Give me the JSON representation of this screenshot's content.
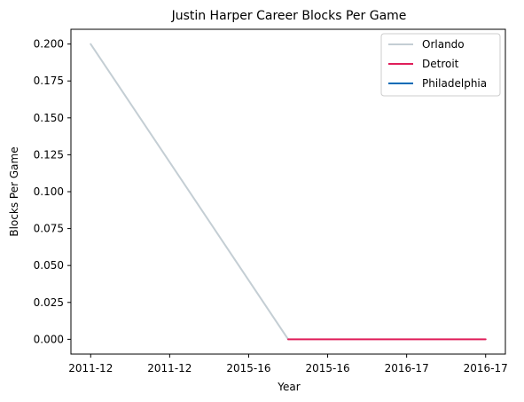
{
  "chart_data": {
    "type": "line",
    "title": "Justin Harper  Career Blocks Per Game",
    "xlabel": "Year",
    "ylabel": "Blocks Per Game",
    "categories": [
      "2011-12",
      "2011-12",
      "2015-16",
      "2015-16",
      "2016-17",
      "2016-17"
    ],
    "yticks": [
      "0.000",
      "0.025",
      "0.050",
      "0.075",
      "0.100",
      "0.125",
      "0.150",
      "0.175",
      "0.200"
    ],
    "ylim": [
      -0.01,
      0.21
    ],
    "series": [
      {
        "name": "Orlando",
        "color": "#c4ced4",
        "x": [
          0,
          2.5
        ],
        "values": [
          0.2,
          0.0
        ]
      },
      {
        "name": "Detroit",
        "color": "#e01e5a",
        "x": [
          2.5,
          5
        ],
        "values": [
          0.0,
          0.0
        ]
      },
      {
        "name": "Philadelphia",
        "color": "#006bb6",
        "x": [],
        "values": []
      }
    ],
    "grid": false,
    "legend": "top-right"
  }
}
